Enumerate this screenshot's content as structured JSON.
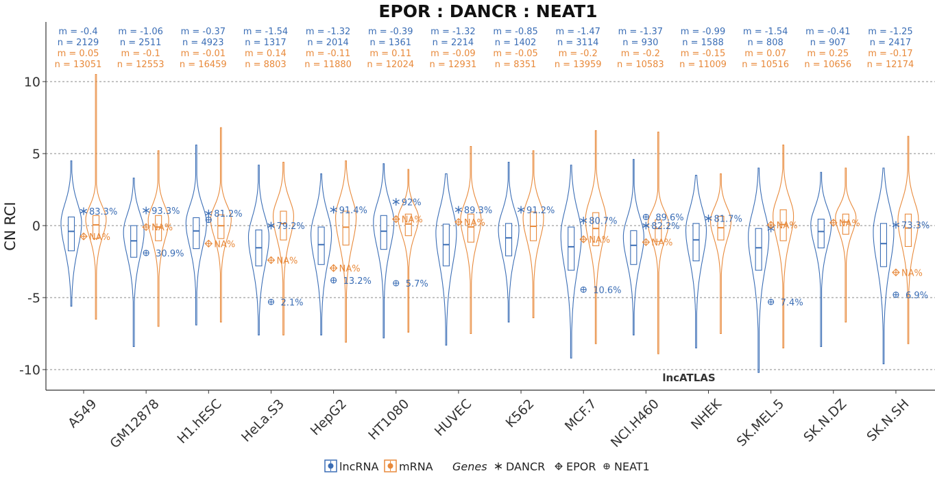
{
  "chart_data": {
    "type": "violin",
    "title": "EPOR : DANCR : NEAT1",
    "ylabel": "CN RCI",
    "xlabel": "",
    "ylim": [
      -11,
      14
    ],
    "yticks": [
      10,
      5,
      0,
      -5,
      -10
    ],
    "ytick_labels": [
      "10",
      "5",
      "0",
      "-5",
      "-10"
    ],
    "grid": "dashed horizontal",
    "watermark": "lncATLAS",
    "colors": {
      "lncRNA": "#3a6db5",
      "mRNA": "#e8893a"
    },
    "legend": {
      "placement": "bottom",
      "fill_entries": [
        {
          "label": "lncRNA"
        },
        {
          "label": "mRNA"
        }
      ],
      "genes_title": "Genes",
      "gene_entries": [
        {
          "label": "DANCR",
          "symbol": "asterisk"
        },
        {
          "label": "EPOR",
          "symbol": "diamond-plus"
        },
        {
          "label": "NEAT1",
          "symbol": "circle-plus"
        }
      ]
    },
    "categories": [
      "A549",
      "GM12878",
      "H1.hESC",
      "HeLa.S3",
      "HepG2",
      "HT1080",
      "HUVEC",
      "K562",
      "MCF.7",
      "NCI.H460",
      "NHEK",
      "SK.MEL.5",
      "SK.N.DZ",
      "SK.N.SH"
    ],
    "stats": [
      {
        "lnc_m": "m = -0.4",
        "lnc_n": "n = 2129",
        "mrna_m": "m = 0.05",
        "mrna_n": "n = 13051"
      },
      {
        "lnc_m": "m = -1.06",
        "lnc_n": "n = 2511",
        "mrna_m": "m = -0.1",
        "mrna_n": "n = 12553"
      },
      {
        "lnc_m": "m = -0.37",
        "lnc_n": "n = 4923",
        "mrna_m": "m = -0.01",
        "mrna_n": "n = 16459"
      },
      {
        "lnc_m": "m = -1.54",
        "lnc_n": "n = 1317",
        "mrna_m": "m = 0.14",
        "mrna_n": "n = 8803"
      },
      {
        "lnc_m": "m = -1.32",
        "lnc_n": "n = 2014",
        "mrna_m": "m = -0.11",
        "mrna_n": "n = 11880"
      },
      {
        "lnc_m": "m = -0.39",
        "lnc_n": "n = 1361",
        "mrna_m": "m = 0.11",
        "mrna_n": "n = 12024"
      },
      {
        "lnc_m": "m = -1.32",
        "lnc_n": "n = 2214",
        "mrna_m": "m = -0.09",
        "mrna_n": "n = 12931"
      },
      {
        "lnc_m": "m = -0.85",
        "lnc_n": "n = 1402",
        "mrna_m": "m = -0.05",
        "mrna_n": "n = 8351"
      },
      {
        "lnc_m": "m = -1.47",
        "lnc_n": "n = 3114",
        "mrna_m": "m = -0.2",
        "mrna_n": "n = 13959"
      },
      {
        "lnc_m": "m = -1.37",
        "lnc_n": "n = 930",
        "mrna_m": "m = -0.2",
        "mrna_n": "n = 10583"
      },
      {
        "lnc_m": "m = -0.99",
        "lnc_n": "n = 1588",
        "mrna_m": "m = -0.15",
        "mrna_n": "n = 11009"
      },
      {
        "lnc_m": "m = -1.54",
        "lnc_n": "n = 808",
        "mrna_m": "m = 0.07",
        "mrna_n": "n = 10516"
      },
      {
        "lnc_m": "m = -0.41",
        "lnc_n": "n = 907",
        "mrna_m": "m = 0.25",
        "mrna_n": "n = 10656"
      },
      {
        "lnc_m": "m = -1.25",
        "lnc_n": "n = 2417",
        "mrna_m": "m = -0.17",
        "mrna_n": "n = 12174"
      }
    ],
    "distributions": [
      {
        "lnc": {
          "min": -5.6,
          "q1": -1.75,
          "med": -0.4,
          "q3": 0.6,
          "max": 4.5
        },
        "mrna": {
          "min": -6.5,
          "q1": -0.9,
          "med": 0.05,
          "q3": 0.7,
          "max": 10.5
        }
      },
      {
        "lnc": {
          "min": -8.4,
          "q1": -2.2,
          "med": -1.06,
          "q3": 0.0,
          "max": 3.3
        },
        "mrna": {
          "min": -7.0,
          "q1": -1.05,
          "med": -0.1,
          "q3": 0.7,
          "max": 5.2
        }
      },
      {
        "lnc": {
          "min": -6.9,
          "q1": -1.6,
          "med": -0.37,
          "q3": 0.55,
          "max": 5.6
        },
        "mrna": {
          "min": -6.7,
          "q1": -0.9,
          "med": -0.01,
          "q3": 0.75,
          "max": 6.8
        }
      },
      {
        "lnc": {
          "min": -7.6,
          "q1": -2.8,
          "med": -1.54,
          "q3": -0.3,
          "max": 4.2
        },
        "mrna": {
          "min": -7.6,
          "q1": -1.0,
          "med": 0.14,
          "q3": 1.0,
          "max": 4.4
        }
      },
      {
        "lnc": {
          "min": -7.6,
          "q1": -2.7,
          "med": -1.32,
          "q3": -0.1,
          "max": 3.6
        },
        "mrna": {
          "min": -8.1,
          "q1": -1.35,
          "med": -0.11,
          "q3": 1.0,
          "max": 4.5
        }
      },
      {
        "lnc": {
          "min": -7.8,
          "q1": -1.65,
          "med": -0.39,
          "q3": 0.7,
          "max": 4.3
        },
        "mrna": {
          "min": -7.4,
          "q1": -0.7,
          "med": 0.11,
          "q3": 0.8,
          "max": 3.9
        }
      },
      {
        "lnc": {
          "min": -8.3,
          "q1": -2.8,
          "med": -1.32,
          "q3": 0.1,
          "max": 3.6
        },
        "mrna": {
          "min": -7.5,
          "q1": -1.15,
          "med": -0.09,
          "q3": 0.8,
          "max": 5.5
        }
      },
      {
        "lnc": {
          "min": -6.7,
          "q1": -2.1,
          "med": -0.85,
          "q3": 0.15,
          "max": 4.4
        },
        "mrna": {
          "min": -6.4,
          "q1": -1.05,
          "med": -0.05,
          "q3": 0.95,
          "max": 5.2
        }
      },
      {
        "lnc": {
          "min": -9.2,
          "q1": -3.1,
          "med": -1.47,
          "q3": -0.1,
          "max": 4.2
        },
        "mrna": {
          "min": -8.2,
          "q1": -1.4,
          "med": -0.2,
          "q3": 0.9,
          "max": 6.6
        }
      },
      {
        "lnc": {
          "min": -7.6,
          "q1": -2.7,
          "med": -1.37,
          "q3": -0.35,
          "max": 4.6
        },
        "mrna": {
          "min": -8.9,
          "q1": -1.1,
          "med": -0.2,
          "q3": 0.4,
          "max": 6.5
        }
      },
      {
        "lnc": {
          "min": -8.5,
          "q1": -2.45,
          "med": -0.99,
          "q3": 0.15,
          "max": 3.5
        },
        "mrna": {
          "min": -7.5,
          "q1": -1.0,
          "med": -0.15,
          "q3": 0.65,
          "max": 3.6
        }
      },
      {
        "lnc": {
          "min": -10.2,
          "q1": -3.1,
          "med": -1.54,
          "q3": -0.2,
          "max": 4.0
        },
        "mrna": {
          "min": -8.5,
          "q1": -1.05,
          "med": 0.07,
          "q3": 1.1,
          "max": 5.6
        }
      },
      {
        "lnc": {
          "min": -8.4,
          "q1": -1.55,
          "med": -0.41,
          "q3": 0.45,
          "max": 3.7
        },
        "mrna": {
          "min": -6.7,
          "q1": -0.6,
          "med": 0.25,
          "q3": 0.8,
          "max": 4.0
        }
      },
      {
        "lnc": {
          "min": -9.6,
          "q1": -2.85,
          "med": -1.25,
          "q3": 0.15,
          "max": 4.0
        },
        "mrna": {
          "min": -8.2,
          "q1": -1.45,
          "med": -0.17,
          "q3": 0.8,
          "max": 6.2
        }
      }
    ],
    "gene_points": [
      {
        "DANCR": {
          "y": 1.0,
          "label": "83.3%"
        },
        "EPOR": {
          "y": -0.75,
          "label": "NA%"
        },
        "NEAT1": null
      },
      {
        "DANCR": {
          "y": 1.05,
          "label": "93.3%"
        },
        "EPOR": {
          "y": -0.1,
          "label": "NA%"
        },
        "NEAT1": {
          "y": -1.9,
          "label": "30.9%"
        }
      },
      {
        "DANCR": {
          "y": 0.85,
          "label": "81.2%"
        },
        "EPOR": {
          "y": -1.25,
          "label": "NA%"
        },
        "NEAT1": {
          "y": 0.4,
          "label": ""
        }
      },
      {
        "DANCR": {
          "y": 0.0,
          "label": "79.2%"
        },
        "EPOR": {
          "y": -2.4,
          "label": "NA%"
        },
        "NEAT1": {
          "y": -5.3,
          "label": "2.1%"
        }
      },
      {
        "DANCR": {
          "y": 1.1,
          "label": "91.4%"
        },
        "EPOR": {
          "y": -2.95,
          "label": "NA%"
        },
        "NEAT1": {
          "y": -3.8,
          "label": "13.2%"
        }
      },
      {
        "DANCR": {
          "y": 1.65,
          "label": "92%"
        },
        "EPOR": {
          "y": 0.45,
          "label": "NA%"
        },
        "NEAT1": {
          "y": -4.0,
          "label": "5.7%"
        }
      },
      {
        "DANCR": {
          "y": 1.1,
          "label": "89.3%"
        },
        "EPOR": {
          "y": 0.25,
          "label": "NA%"
        },
        "NEAT1": null
      },
      {
        "DANCR": {
          "y": 1.1,
          "label": "91.2%"
        },
        "EPOR": null,
        "NEAT1": null
      },
      {
        "DANCR": {
          "y": 0.35,
          "label": "80.7%"
        },
        "EPOR": {
          "y": -0.95,
          "label": "NA%"
        },
        "NEAT1": {
          "y": -4.45,
          "label": "10.6%"
        }
      },
      {
        "DANCR": {
          "y": 0.0,
          "label": "82.2%"
        },
        "EPOR": {
          "y": -1.15,
          "label": "NA%"
        },
        "NEAT1": {
          "y": 0.6,
          "label": "89.6%"
        }
      },
      {
        "DANCR": {
          "y": 0.5,
          "label": "81.7%"
        },
        "EPOR": null,
        "NEAT1": null
      },
      {
        "DANCR": {
          "y": -0.2,
          "label": ""
        },
        "EPOR": {
          "y": 0.05,
          "label": "NA%"
        },
        "NEAT1": {
          "y": -5.3,
          "label": "7.4%"
        }
      },
      {
        "DANCR": null,
        "EPOR": {
          "y": 0.2,
          "label": "NA%"
        },
        "NEAT1": null
      },
      {
        "DANCR": {
          "y": 0.05,
          "label": "73.3%"
        },
        "EPOR": {
          "y": -3.25,
          "label": "NA%"
        },
        "NEAT1": {
          "y": -4.8,
          "label": "6.9%"
        }
      }
    ]
  }
}
